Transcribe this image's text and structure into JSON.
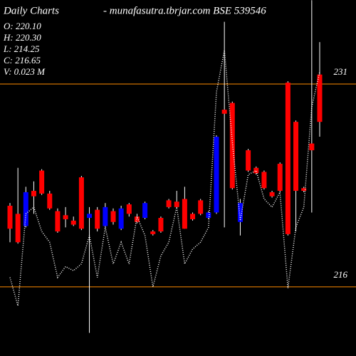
{
  "chart_data": {
    "type": "candlestick",
    "title": "Daily Charts",
    "subtitle": "- munafasutra.tbrjar.com BSE 539546",
    "info": [
      "O: 220.10",
      "H: 220.30",
      "L: 214.25",
      "C: 216.65",
      "V: 0.023 M"
    ],
    "ylim": [
      210.89,
      237.21
    ],
    "yticks": [
      216,
      231
    ],
    "up_color": "#0000ff",
    "down_color": "#ff0000",
    "wick_color": "#ffffff",
    "level_color": "#ff8c00",
    "line_color": "#ffffff",
    "open": [
      222.0,
      221.4,
      220.5,
      223.1,
      224.6,
      222.9,
      221.6,
      221.3,
      220.9,
      224.1,
      221.1,
      221.7,
      220.5,
      221.6,
      220.3,
      222.1,
      221.2,
      221.1,
      220.1,
      221.1,
      222.4,
      222.3,
      222.5,
      221.4,
      222.4,
      221.1,
      221.5,
      229.1,
      229.6,
      220.8,
      226.1,
      224.8,
      224.5,
      223.0,
      225.1,
      231.1,
      228.2,
      223.3,
      226.6,
      231.7
    ],
    "high": [
      222.2,
      224.8,
      223.4,
      223.8,
      224.7,
      223.1,
      221.8,
      221.9,
      221.2,
      224.2,
      221.9,
      221.9,
      222.2,
      221.8,
      222.0,
      222.2,
      221.4,
      222.3,
      220.2,
      221.2,
      222.5,
      223.1,
      223.4,
      221.5,
      222.5,
      221.6,
      227.2,
      235.6,
      229.7,
      222.5,
      226.2,
      224.9,
      224.6,
      223.1,
      225.2,
      231.2,
      228.3,
      223.4,
      237.2,
      234.1
    ],
    "low": [
      219.3,
      219.2,
      220.4,
      221.4,
      222.8,
      221.7,
      220.0,
      220.4,
      220.5,
      220.2,
      212.6,
      220.1,
      220.4,
      220.6,
      220.2,
      221.2,
      220.7,
      221.0,
      219.8,
      220.0,
      221.8,
      221.8,
      220.3,
      220.9,
      221.3,
      221.0,
      221.4,
      220.4,
      223.2,
      219.8,
      224.5,
      224.3,
      223.2,
      222.6,
      223.0,
      219.8,
      220.1,
      223.0,
      221.5,
      227.1
    ],
    "close": [
      220.3,
      219.3,
      223.0,
      222.7,
      222.9,
      221.8,
      220.1,
      221.0,
      220.6,
      220.3,
      221.4,
      220.3,
      221.9,
      220.8,
      221.8,
      221.4,
      220.8,
      222.2,
      219.9,
      220.1,
      221.9,
      221.9,
      220.3,
      221.0,
      221.4,
      221.5,
      227.1,
      228.8,
      223.3,
      222.2,
      224.6,
      224.4,
      223.3,
      222.7,
      223.1,
      219.9,
      223.1,
      223.1,
      226.1,
      228.2
    ],
    "line_values": [
      216.7,
      214.6,
      221.4,
      221.9,
      220.1,
      219.3,
      216.7,
      217.5,
      217.2,
      217.7,
      219.8,
      216.7,
      220.4,
      217.7,
      219.3,
      217.7,
      221.2,
      219.8,
      216.0,
      218.3,
      219.3,
      221.9,
      217.7,
      218.8,
      219.3,
      220.4,
      230.4,
      233.5,
      226.7,
      220.9,
      224.3,
      224.6,
      222.5,
      221.9,
      223.0,
      215.9,
      220.4,
      221.9,
      229.3,
      231.9
    ]
  }
}
